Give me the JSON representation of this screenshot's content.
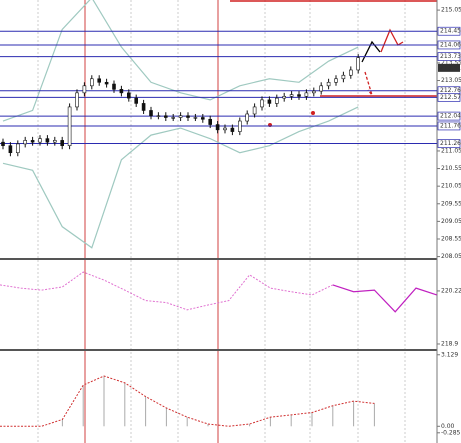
{
  "chart_data": [
    {
      "type": "candlestick",
      "open": [
        211.3,
        211.2,
        211.0,
        211.25,
        211.35,
        211.3,
        211.4,
        211.3,
        211.35,
        211.2,
        212.3,
        212.7,
        212.9,
        213.1,
        213.0,
        212.95,
        212.8,
        212.7,
        212.55,
        212.4,
        212.2,
        212.05,
        212.05,
        212.0,
        212.0,
        212.05,
        212.0,
        212.0,
        211.95,
        211.8,
        211.65,
        211.7,
        211.6,
        211.9,
        212.1,
        212.3,
        212.5,
        212.4,
        212.55,
        212.6,
        212.65,
        212.6,
        212.7,
        212.75,
        212.9,
        213.0,
        213.1,
        213.2,
        213.35
      ],
      "high": [
        211.4,
        211.3,
        211.35,
        211.45,
        211.45,
        211.5,
        211.5,
        211.45,
        211.45,
        212.4,
        212.8,
        213.0,
        213.2,
        213.2,
        213.1,
        213.05,
        212.9,
        212.8,
        212.65,
        212.5,
        212.3,
        212.15,
        212.15,
        212.1,
        212.15,
        212.15,
        212.1,
        212.1,
        212.05,
        211.9,
        211.8,
        211.8,
        212.0,
        212.2,
        212.4,
        212.6,
        212.6,
        212.65,
        212.7,
        212.75,
        212.75,
        212.8,
        212.85,
        213.0,
        213.1,
        213.2,
        213.3,
        213.45,
        213.8
      ],
      "low": [
        211.1,
        210.9,
        210.9,
        211.15,
        211.2,
        211.2,
        211.2,
        211.2,
        211.1,
        211.1,
        212.2,
        212.6,
        212.8,
        212.9,
        212.85,
        212.7,
        212.6,
        212.45,
        212.3,
        212.1,
        211.95,
        211.95,
        211.9,
        211.9,
        211.9,
        211.9,
        211.9,
        211.85,
        211.7,
        211.55,
        211.55,
        211.5,
        211.5,
        211.8,
        212.0,
        212.2,
        212.3,
        212.3,
        212.45,
        212.5,
        212.5,
        212.5,
        212.6,
        212.65,
        212.8,
        212.9,
        213.0,
        213.1,
        213.25
      ],
      "close": [
        211.2,
        211.0,
        211.25,
        211.35,
        211.3,
        211.4,
        211.3,
        211.35,
        211.2,
        212.3,
        212.7,
        212.9,
        213.1,
        213.0,
        212.95,
        212.8,
        212.7,
        212.55,
        212.4,
        212.2,
        212.05,
        212.05,
        212.0,
        212.0,
        212.05,
        212.0,
        212.0,
        211.95,
        211.8,
        211.65,
        211.7,
        211.6,
        211.9,
        212.1,
        212.3,
        212.5,
        212.4,
        212.55,
        212.6,
        212.65,
        212.6,
        212.7,
        212.75,
        212.9,
        213.0,
        213.1,
        213.2,
        213.35,
        213.7
      ],
      "color": "#111111",
      "bands": {
        "x": [
          0,
          4,
          8,
          12,
          16,
          20,
          24,
          28,
          32,
          36,
          40,
          44,
          48
        ],
        "color": "#9fc9c0",
        "upper": [
          211.9,
          212.2,
          214.5,
          215.4,
          214.0,
          213.0,
          212.7,
          212.5,
          212.9,
          213.1,
          213.0,
          213.6,
          214.0
        ],
        "lower": [
          210.7,
          210.5,
          208.9,
          208.3,
          210.8,
          211.5,
          211.7,
          211.4,
          211.0,
          211.2,
          211.6,
          211.9,
          212.3
        ]
      },
      "levels": [
        214.45,
        214.06,
        213.73,
        212.76,
        212.57,
        212.04,
        211.76,
        211.26
      ],
      "level_color": "#2b2bb0",
      "current_price": 213.41,
      "ylim": [
        208.01,
        215.28
      ],
      "yticks": [
        215.05,
        213.55,
        213.05,
        211.05,
        210.55,
        210.05,
        209.55,
        209.05,
        208.55,
        208.05
      ]
    },
    {
      "type": "line",
      "series": [
        {
          "color": "#e070d0",
          "values": [
            220.37,
            220.29,
            220.24,
            220.32,
            220.69,
            220.49,
            220.24,
            219.98,
            219.93,
            219.75,
            219.87,
            219.98,
            220.62,
            220.29,
            220.2,
            220.12,
            220.37,
            null,
            null,
            null,
            null,
            null
          ]
        },
        {
          "color": "#c020c0",
          "values": [
            null,
            null,
            null,
            null,
            null,
            null,
            null,
            null,
            null,
            null,
            null,
            null,
            null,
            null,
            null,
            null,
            220.37,
            220.2,
            220.24,
            219.7,
            220.29,
            220.12
          ]
        }
      ],
      "ylim": [
        218.75,
        220.94
      ],
      "yticks": [
        220.22,
        218.9
      ]
    },
    {
      "type": "histogram-line",
      "values": [
        0,
        0,
        0,
        0.3,
        1.8,
        2.2,
        1.9,
        1.3,
        0.8,
        0.4,
        0.1,
        0,
        0.1,
        0.4,
        0.5,
        0.6,
        0.9,
        1.1,
        1.0
      ],
      "color": "#d03030",
      "bar_color": "#aaaaaa",
      "ylim": [
        -0.6,
        3.25
      ],
      "yticks": [
        3.129,
        {
          "value": 0,
          "label": "0.00"
        },
        -0.285
      ]
    }
  ]
}
